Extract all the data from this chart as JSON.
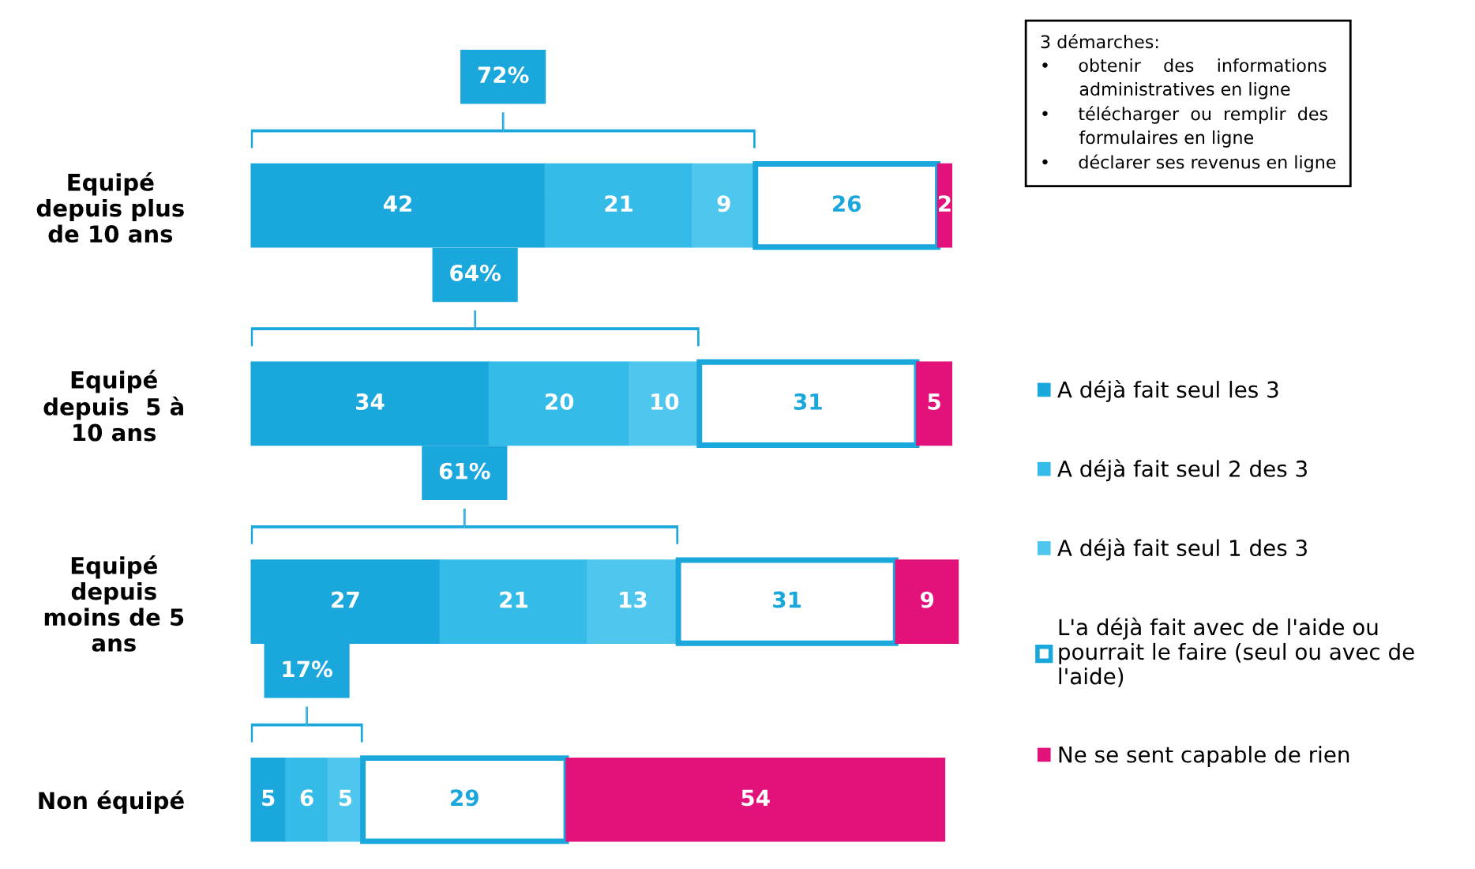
{
  "chart_data": {
    "type": "bar",
    "orientation": "horizontal",
    "stacked": true,
    "data_labels": true,
    "legend": "right",
    "grid": false,
    "categories": [
      "Equipé\ndepuis plus\nde 10 ans",
      "Equipé\ndepuis  5 à\n10 ans",
      "Equipé\ndepuis\nmoins de 5\nans",
      "Non équipé"
    ],
    "series": [
      {
        "name": "A déjà fait seul les 3",
        "color": "#1aa7dc",
        "values": [
          42,
          34,
          27,
          5
        ]
      },
      {
        "name": "A déjà fait seul 2 des 3",
        "color": "#35bbe8",
        "values": [
          21,
          20,
          21,
          6
        ]
      },
      {
        "name": "A déjà fait seul 1 des 3",
        "color": "#4fc6ee",
        "values": [
          9,
          10,
          13,
          5
        ]
      },
      {
        "name": "L'a déjà fait avec de l'aide ou\npourrait le faire (seul ou avec de\nl'aide)",
        "color": "#ffffff",
        "values": [
          26,
          31,
          31,
          29
        ]
      },
      {
        "name": "Ne se sent capable de rien",
        "color": "#e2127a",
        "values": [
          2,
          5,
          9,
          54
        ]
      }
    ],
    "annotations": [
      "3 démarches:\n•     obtenir    des    informations\n       administratives en ligne\n•     télécharger  ou  remplir  des\n       formulaires en ligne\n•     déclarer ses revenus en ligne",
      "72%",
      "64%",
      "61%",
      "17%"
    ]
  }
}
